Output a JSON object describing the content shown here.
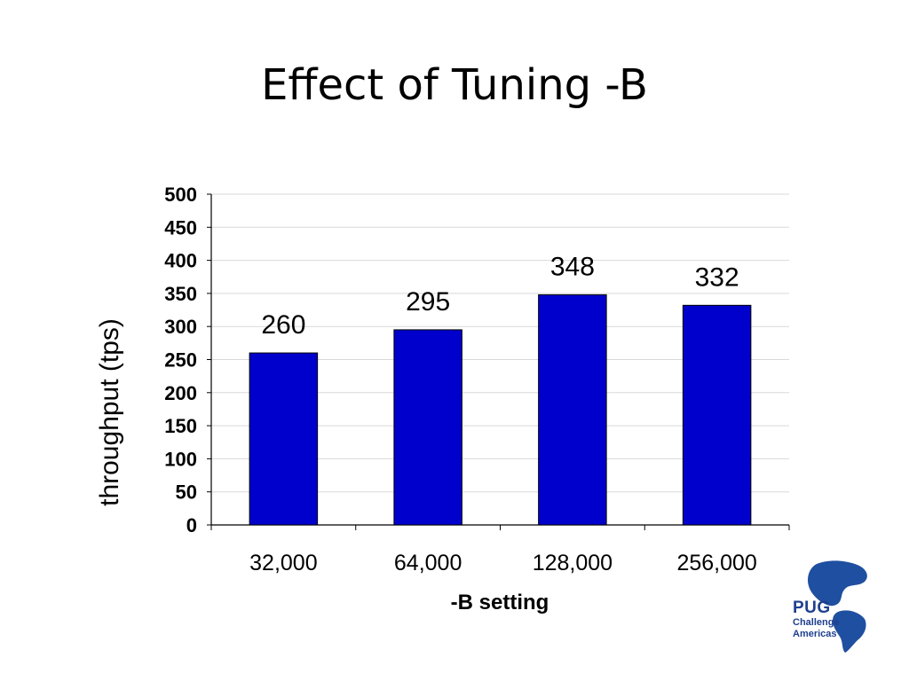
{
  "slide": {
    "title": "Effect of Tuning -B"
  },
  "logo": {
    "line1": "PUG",
    "line2": "Challenge",
    "line3": "Americas"
  },
  "chart_data": {
    "type": "bar",
    "categories": [
      "32,000",
      "64,000",
      "128,000",
      "256,000"
    ],
    "values": [
      260,
      295,
      348,
      332
    ],
    "data_labels": [
      "260",
      "295",
      "348",
      "332"
    ],
    "xlabel": "-B setting",
    "ylabel": "throughput (tps)",
    "ylim": [
      0,
      500
    ],
    "yticks": [
      0,
      50,
      100,
      150,
      200,
      250,
      300,
      350,
      400,
      450,
      500
    ],
    "grid": true,
    "legend": "none",
    "colors": {
      "bar": "#0000cc",
      "bar_edge": "#000000",
      "grid": "#d9d9d9",
      "axis": "#000000"
    }
  }
}
